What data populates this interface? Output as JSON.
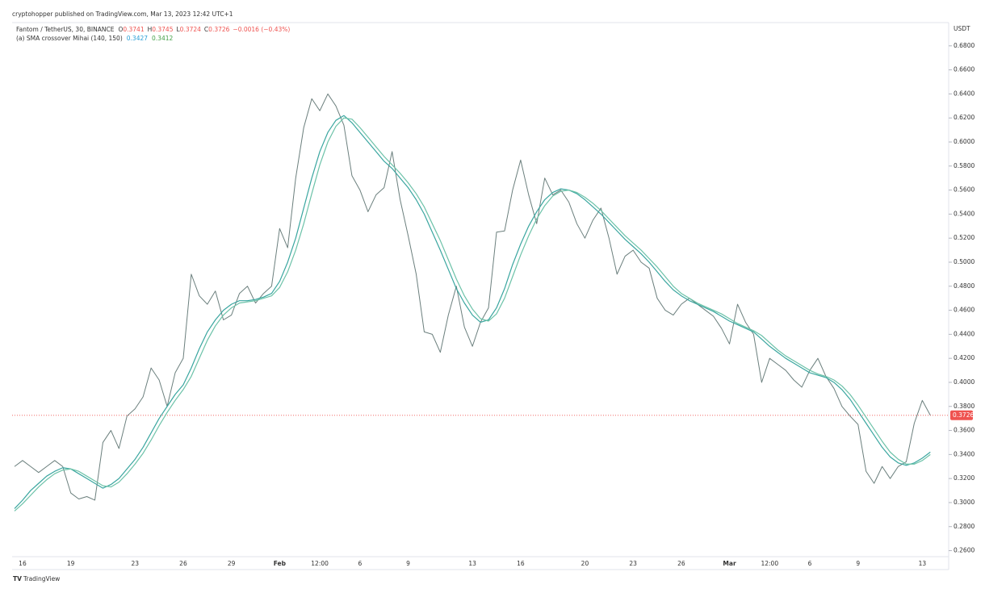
{
  "header": "cryptohopper published on TradingView.com, Mar 13, 2023 12:42 UTC+1",
  "footer": "TradingView",
  "chart_data": {
    "type": "line",
    "title": "Fantom / TetherUS, 30, BINANCE",
    "ohlc": [
      {
        "label": "O",
        "value": 0.3741
      },
      {
        "label": "H",
        "value": 0.3745
      },
      {
        "label": "L",
        "value": 0.3724
      },
      {
        "label": "C",
        "value": 0.3726
      }
    ],
    "change": "−0.0016 (−0.43%)",
    "indicator": "(a) SMA crossover Mihai (140, 150)",
    "indicator_values": [
      {
        "value": 0.3427,
        "label": "0.3427",
        "color": "#2a9fd6"
      },
      {
        "value": 0.3412,
        "label": "0.3412",
        "color": "#43a047"
      }
    ],
    "y_axis_label": "USDT",
    "last_price": 0.3726,
    "last_price_color": "#ef5350",
    "grid": false,
    "categories": [
      null,
      "16",
      null,
      null,
      null,
      null,
      null,
      "19",
      null,
      null,
      null,
      null,
      null,
      null,
      null,
      "23",
      null,
      null,
      null,
      null,
      null,
      "26",
      null,
      null,
      null,
      null,
      null,
      "29",
      null,
      null,
      null,
      null,
      null,
      "Feb",
      null,
      null,
      null,
      null,
      "12:00",
      null,
      null,
      null,
      null,
      "6",
      null,
      null,
      null,
      null,
      null,
      "9",
      null,
      null,
      null,
      null,
      null,
      null,
      null,
      "13",
      null,
      null,
      null,
      null,
      null,
      "16",
      null,
      null,
      null,
      null,
      null,
      null,
      null,
      "20",
      null,
      null,
      null,
      null,
      null,
      "23",
      null,
      null,
      null,
      null,
      null,
      "26",
      null,
      null,
      null,
      null,
      null,
      "Mar",
      null,
      null,
      null,
      null,
      "12:00",
      null,
      null,
      null,
      null,
      "6",
      null,
      null,
      null,
      null,
      null,
      "9",
      null,
      null,
      null,
      null,
      null,
      null,
      null,
      "13",
      null
    ],
    "series": [
      {
        "name": "Price",
        "color": "#6b7f7d",
        "values": [
          0.33,
          0.335,
          0.33,
          0.325,
          0.33,
          0.335,
          0.33,
          0.308,
          0.303,
          0.305,
          0.302,
          0.35,
          0.36,
          0.345,
          0.372,
          0.378,
          0.388,
          0.412,
          0.402,
          0.38,
          0.408,
          0.42,
          0.49,
          0.472,
          0.465,
          0.476,
          0.452,
          0.456,
          0.474,
          0.48,
          0.466,
          0.474,
          0.48,
          0.528,
          0.512,
          0.57,
          0.612,
          0.636,
          0.626,
          0.64,
          0.63,
          0.614,
          0.572,
          0.56,
          0.542,
          0.556,
          0.562,
          0.592,
          0.552,
          0.522,
          0.49,
          0.442,
          0.44,
          0.425,
          0.456,
          0.48,
          0.446,
          0.43,
          0.45,
          0.462,
          0.525,
          0.526,
          0.56,
          0.585,
          0.556,
          0.532,
          0.57,
          0.556,
          0.56,
          0.55,
          0.532,
          0.52,
          0.535,
          0.545,
          0.52,
          0.49,
          0.505,
          0.51,
          0.5,
          0.495,
          0.47,
          0.46,
          0.456,
          0.465,
          0.47,
          0.465,
          0.46,
          0.455,
          0.445,
          0.432,
          0.465,
          0.45,
          0.44,
          0.4,
          0.42,
          0.415,
          0.41,
          0.402,
          0.396,
          0.41,
          0.42,
          0.405,
          0.395,
          0.38,
          0.372,
          0.365,
          0.326,
          0.316,
          0.33,
          0.32,
          0.33,
          0.334,
          0.366,
          0.385,
          0.3726
        ]
      },
      {
        "name": "SMA 140",
        "color": "#3aa6a0",
        "values": [
          0.295,
          0.302,
          0.31,
          0.316,
          0.322,
          0.326,
          0.329,
          0.328,
          0.324,
          0.32,
          0.316,
          0.312,
          0.315,
          0.32,
          0.328,
          0.336,
          0.346,
          0.358,
          0.37,
          0.38,
          0.39,
          0.398,
          0.412,
          0.428,
          0.442,
          0.452,
          0.46,
          0.465,
          0.468,
          0.468,
          0.469,
          0.471,
          0.474,
          0.484,
          0.5,
          0.52,
          0.545,
          0.57,
          0.592,
          0.608,
          0.618,
          0.622,
          0.616,
          0.608,
          0.6,
          0.592,
          0.584,
          0.578,
          0.57,
          0.562,
          0.552,
          0.54,
          0.525,
          0.51,
          0.494,
          0.478,
          0.466,
          0.456,
          0.45,
          0.452,
          0.462,
          0.478,
          0.498,
          0.515,
          0.53,
          0.542,
          0.552,
          0.558,
          0.561,
          0.56,
          0.557,
          0.552,
          0.546,
          0.54,
          0.533,
          0.526,
          0.519,
          0.513,
          0.507,
          0.5,
          0.492,
          0.484,
          0.477,
          0.472,
          0.468,
          0.465,
          0.462,
          0.459,
          0.455,
          0.451,
          0.448,
          0.445,
          0.442,
          0.436,
          0.43,
          0.425,
          0.42,
          0.416,
          0.412,
          0.408,
          0.406,
          0.404,
          0.4,
          0.394,
          0.386,
          0.376,
          0.366,
          0.356,
          0.346,
          0.338,
          0.333,
          0.331,
          0.333,
          0.337,
          0.342
        ]
      },
      {
        "name": "SMA 150",
        "color": "#6cc2a8",
        "values": [
          0.293,
          0.299,
          0.306,
          0.313,
          0.319,
          0.324,
          0.327,
          0.328,
          0.326,
          0.322,
          0.318,
          0.314,
          0.313,
          0.317,
          0.324,
          0.332,
          0.341,
          0.352,
          0.364,
          0.375,
          0.385,
          0.394,
          0.405,
          0.42,
          0.435,
          0.447,
          0.456,
          0.462,
          0.466,
          0.467,
          0.468,
          0.47,
          0.472,
          0.479,
          0.492,
          0.51,
          0.532,
          0.557,
          0.581,
          0.6,
          0.613,
          0.62,
          0.619,
          0.612,
          0.604,
          0.596,
          0.588,
          0.581,
          0.574,
          0.566,
          0.557,
          0.546,
          0.532,
          0.518,
          0.502,
          0.486,
          0.472,
          0.461,
          0.453,
          0.451,
          0.457,
          0.47,
          0.488,
          0.506,
          0.522,
          0.536,
          0.547,
          0.555,
          0.559,
          0.56,
          0.558,
          0.554,
          0.549,
          0.543,
          0.536,
          0.529,
          0.522,
          0.516,
          0.51,
          0.503,
          0.496,
          0.488,
          0.48,
          0.474,
          0.47,
          0.466,
          0.463,
          0.46,
          0.457,
          0.453,
          0.449,
          0.446,
          0.443,
          0.439,
          0.433,
          0.427,
          0.422,
          0.418,
          0.414,
          0.41,
          0.407,
          0.405,
          0.402,
          0.397,
          0.39,
          0.381,
          0.371,
          0.361,
          0.351,
          0.342,
          0.336,
          0.332,
          0.332,
          0.335,
          0.34
        ]
      }
    ],
    "ylim": [
      0.255,
      0.698
    ],
    "yticks": [
      {
        "value": 0.26,
        "label": "0.2600"
      },
      {
        "value": 0.28,
        "label": "0.2800"
      },
      {
        "value": 0.3,
        "label": "0.3000"
      },
      {
        "value": 0.32,
        "label": "0.3200"
      },
      {
        "value": 0.34,
        "label": "0.3400"
      },
      {
        "value": 0.36,
        "label": "0.3600"
      },
      {
        "value": 0.38,
        "label": "0.3800"
      },
      {
        "value": 0.4,
        "label": "0.4000"
      },
      {
        "value": 0.42,
        "label": "0.4200"
      },
      {
        "value": 0.44,
        "label": "0.4400"
      },
      {
        "value": 0.46,
        "label": "0.4600"
      },
      {
        "value": 0.48,
        "label": "0.4800"
      },
      {
        "value": 0.5,
        "label": "0.5000"
      },
      {
        "value": 0.52,
        "label": "0.5200"
      },
      {
        "value": 0.54,
        "label": "0.5400"
      },
      {
        "value": 0.56,
        "label": "0.5600"
      },
      {
        "value": 0.58,
        "label": "0.5800"
      },
      {
        "value": 0.6,
        "label": "0.6000"
      },
      {
        "value": 0.62,
        "label": "0.6200"
      },
      {
        "value": 0.64,
        "label": "0.6400"
      },
      {
        "value": 0.66,
        "label": "0.6600"
      },
      {
        "value": 0.68,
        "label": "0.6800"
      }
    ]
  }
}
